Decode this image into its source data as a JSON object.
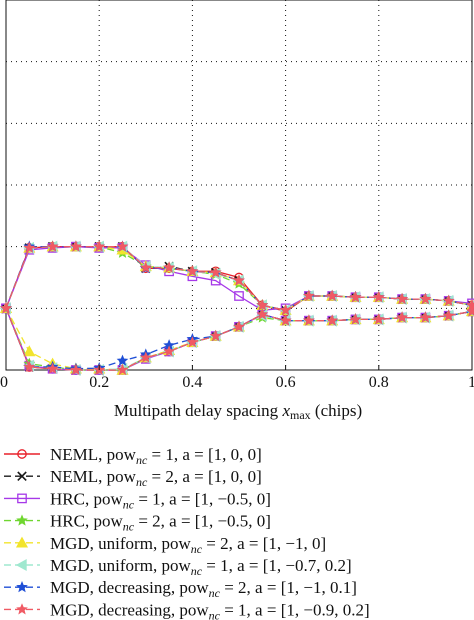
{
  "chart_data": {
    "type": "line",
    "xlabel_prefix": "Multipath delay spacing ",
    "xlabel_var": "x",
    "xlabel_sub": "max",
    "xlabel_suffix": " (chips)",
    "xlim": [
      0,
      1
    ],
    "ylim": [
      -0.1,
      0.5
    ],
    "grid": true,
    "legend_position": "below",
    "x_ticks": [
      {
        "value": 0,
        "label": "0"
      },
      {
        "value": 0.2,
        "label": "0.2"
      },
      {
        "value": 0.4,
        "label": "0.4"
      },
      {
        "value": 0.6,
        "label": "0.6"
      },
      {
        "value": 0.8,
        "label": "0.8"
      },
      {
        "value": 1,
        "label": "1"
      }
    ],
    "y_grid": [
      -0.1,
      0,
      0.1,
      0.2,
      0.3,
      0.4,
      0.5
    ],
    "x": [
      0,
      0.05,
      0.1,
      0.15,
      0.2,
      0.25,
      0.3,
      0.35,
      0.4,
      0.45,
      0.5,
      0.55,
      0.6,
      0.65,
      0.7,
      0.75,
      0.8,
      0.85,
      0.9,
      0.95,
      1.0
    ],
    "series": [
      {
        "name": "NEML, pow_nc = 1, a = [1,0,0]",
        "label_parts": [
          "NEML, pow",
          "nc",
          " = 1, a = [1, 0, 0]"
        ],
        "color": "#e8202a",
        "dash": "",
        "marker": "circle",
        "upper": [
          0,
          0.098,
          0.1,
          0.1,
          0.1,
          0.1,
          0.065,
          0.065,
          0.06,
          0.06,
          0.05,
          0.005,
          -0.005,
          0.02,
          0.02,
          0.018,
          0.018,
          0.015,
          0.015,
          0.012,
          0.005
        ],
        "lower": [
          0,
          -0.095,
          -0.098,
          -0.1,
          -0.1,
          -0.1,
          -0.08,
          -0.07,
          -0.055,
          -0.045,
          -0.03,
          -0.01,
          -0.02,
          -0.02,
          -0.02,
          -0.018,
          -0.018,
          -0.015,
          -0.015,
          -0.012,
          -0.005
        ]
      },
      {
        "name": "NEML, pow_nc = 2, a = [1,0,0]",
        "label_parts": [
          "NEML, pow",
          "nc",
          " = 2, a = [1, 0, 0]"
        ],
        "color": "#1a1a1a",
        "dash": "7,4",
        "marker": "x",
        "upper": [
          0,
          0.098,
          0.1,
          0.1,
          0.1,
          0.1,
          0.065,
          0.068,
          0.06,
          0.058,
          0.045,
          0.005,
          -0.003,
          0.02,
          0.02,
          0.018,
          0.018,
          0.015,
          0.015,
          0.012,
          0.005
        ],
        "lower": [
          0,
          -0.095,
          -0.098,
          -0.1,
          -0.1,
          -0.1,
          -0.08,
          -0.07,
          -0.055,
          -0.045,
          -0.03,
          -0.01,
          -0.02,
          -0.02,
          -0.02,
          -0.018,
          -0.018,
          -0.015,
          -0.015,
          -0.012,
          -0.005
        ]
      },
      {
        "name": "HRC, pow_nc = 1, a = [1,-0.5,0]",
        "label_parts": [
          "HRC, pow",
          "nc",
          " = 1, a = [1, −0.5, 0]"
        ],
        "color": "#a638e8",
        "dash": "",
        "marker": "square",
        "upper": [
          0,
          0.095,
          0.098,
          0.1,
          0.098,
          0.098,
          0.07,
          0.06,
          0.052,
          0.045,
          0.02,
          -0.003,
          0.0,
          0.02,
          0.02,
          0.018,
          0.018,
          0.015,
          0.015,
          0.012,
          0.008
        ],
        "lower": [
          0,
          -0.093,
          -0.098,
          -0.1,
          -0.1,
          -0.1,
          -0.082,
          -0.07,
          -0.055,
          -0.045,
          -0.03,
          -0.01,
          -0.02,
          -0.02,
          -0.02,
          -0.018,
          -0.018,
          -0.015,
          -0.015,
          -0.012,
          -0.005
        ]
      },
      {
        "name": "HRC, pow_nc = 2, a = [1,-0.5,0]",
        "label_parts": [
          "HRC, pow",
          "nc",
          " = 2, a = [1, −0.5, 0]"
        ],
        "color": "#6fd630",
        "dash": "7,4",
        "marker": "star",
        "upper": [
          0,
          0.098,
          0.1,
          0.1,
          0.1,
          0.09,
          0.068,
          0.065,
          0.06,
          0.055,
          0.04,
          0.005,
          -0.003,
          0.02,
          0.02,
          0.018,
          0.018,
          0.015,
          0.015,
          0.012,
          0.005
        ],
        "lower": [
          0,
          -0.09,
          -0.095,
          -0.1,
          -0.1,
          -0.1,
          -0.08,
          -0.07,
          -0.055,
          -0.045,
          -0.03,
          -0.015,
          -0.02,
          -0.02,
          -0.02,
          -0.018,
          -0.018,
          -0.015,
          -0.015,
          -0.012,
          -0.005
        ]
      },
      {
        "name": "MGD, uniform, pow_nc = 2, a = [1,-1,0]",
        "label_parts": [
          "MGD, uniform, pow",
          "nc",
          " = 2, a = [1, −1, 0]"
        ],
        "color": "#f2e42c",
        "dash": "7,4",
        "marker": "triangle",
        "upper": [
          0,
          0.098,
          0.1,
          0.1,
          0.1,
          0.095,
          0.068,
          0.066,
          0.06,
          0.058,
          0.045,
          0.005,
          -0.003,
          0.02,
          0.02,
          0.018,
          0.018,
          0.015,
          0.015,
          0.012,
          0.005
        ],
        "lower": [
          0,
          -0.07,
          -0.09,
          -0.098,
          -0.098,
          -0.1,
          -0.08,
          -0.068,
          -0.055,
          -0.045,
          -0.03,
          -0.01,
          -0.02,
          -0.02,
          -0.02,
          -0.018,
          -0.018,
          -0.015,
          -0.015,
          -0.012,
          -0.005
        ]
      },
      {
        "name": "MGD, uniform, pow_nc = 1, a = [1,-0.7,0.2]",
        "label_parts": [
          "MGD, uniform, pow",
          "nc",
          " = 1, a = [1, −0.7, 0.2]"
        ],
        "color": "#9fe8cf",
        "dash": "7,4",
        "marker": "triangle-left",
        "upper": [
          0,
          0.098,
          0.1,
          0.1,
          0.1,
          0.1,
          0.068,
          0.066,
          0.06,
          0.056,
          0.045,
          0.005,
          -0.003,
          0.02,
          0.02,
          0.018,
          0.018,
          0.015,
          0.015,
          0.012,
          0.005
        ],
        "lower": [
          0,
          -0.093,
          -0.097,
          -0.1,
          -0.1,
          -0.098,
          -0.08,
          -0.07,
          -0.055,
          -0.045,
          -0.03,
          -0.012,
          -0.02,
          -0.02,
          -0.02,
          -0.018,
          -0.018,
          -0.015,
          -0.015,
          -0.012,
          -0.005
        ]
      },
      {
        "name": "MGD, decreasing, pow_nc = 2, a = [1,-1,0.1]",
        "label_parts": [
          "MGD, decreasing, pow",
          "nc",
          " = 2, a = [1, −1, 0.1]"
        ],
        "color": "#1f4fd6",
        "dash": "7,4",
        "marker": "star",
        "upper": [
          0,
          0.1,
          0.1,
          0.1,
          0.1,
          0.1,
          0.065,
          0.066,
          0.06,
          0.058,
          0.045,
          0.005,
          -0.003,
          0.02,
          0.02,
          0.018,
          0.018,
          0.015,
          0.015,
          0.012,
          0.005
        ],
        "lower": [
          0,
          -0.095,
          -0.095,
          -0.098,
          -0.097,
          -0.085,
          -0.075,
          -0.06,
          -0.05,
          -0.045,
          -0.03,
          -0.01,
          -0.02,
          -0.02,
          -0.02,
          -0.018,
          -0.018,
          -0.015,
          -0.015,
          -0.012,
          -0.005
        ]
      },
      {
        "name": "MGD, decreasing, pow_nc = 1, a = [1,-0.9,0.2]",
        "label_parts": [
          "MGD, decreasing, pow",
          "nc",
          " = 1, a = [1, −0.9, 0.2]"
        ],
        "color": "#f05a64",
        "dash": "7,4",
        "marker": "star",
        "upper": [
          0,
          0.098,
          0.1,
          0.1,
          0.1,
          0.1,
          0.066,
          0.066,
          0.06,
          0.058,
          0.045,
          0.005,
          -0.003,
          0.02,
          0.02,
          0.018,
          0.018,
          0.015,
          0.015,
          0.012,
          0.005
        ],
        "lower": [
          0,
          -0.095,
          -0.098,
          -0.1,
          -0.1,
          -0.1,
          -0.08,
          -0.07,
          -0.055,
          -0.045,
          -0.03,
          -0.01,
          -0.02,
          -0.02,
          -0.02,
          -0.018,
          -0.018,
          -0.015,
          -0.015,
          -0.012,
          -0.005
        ]
      }
    ]
  }
}
